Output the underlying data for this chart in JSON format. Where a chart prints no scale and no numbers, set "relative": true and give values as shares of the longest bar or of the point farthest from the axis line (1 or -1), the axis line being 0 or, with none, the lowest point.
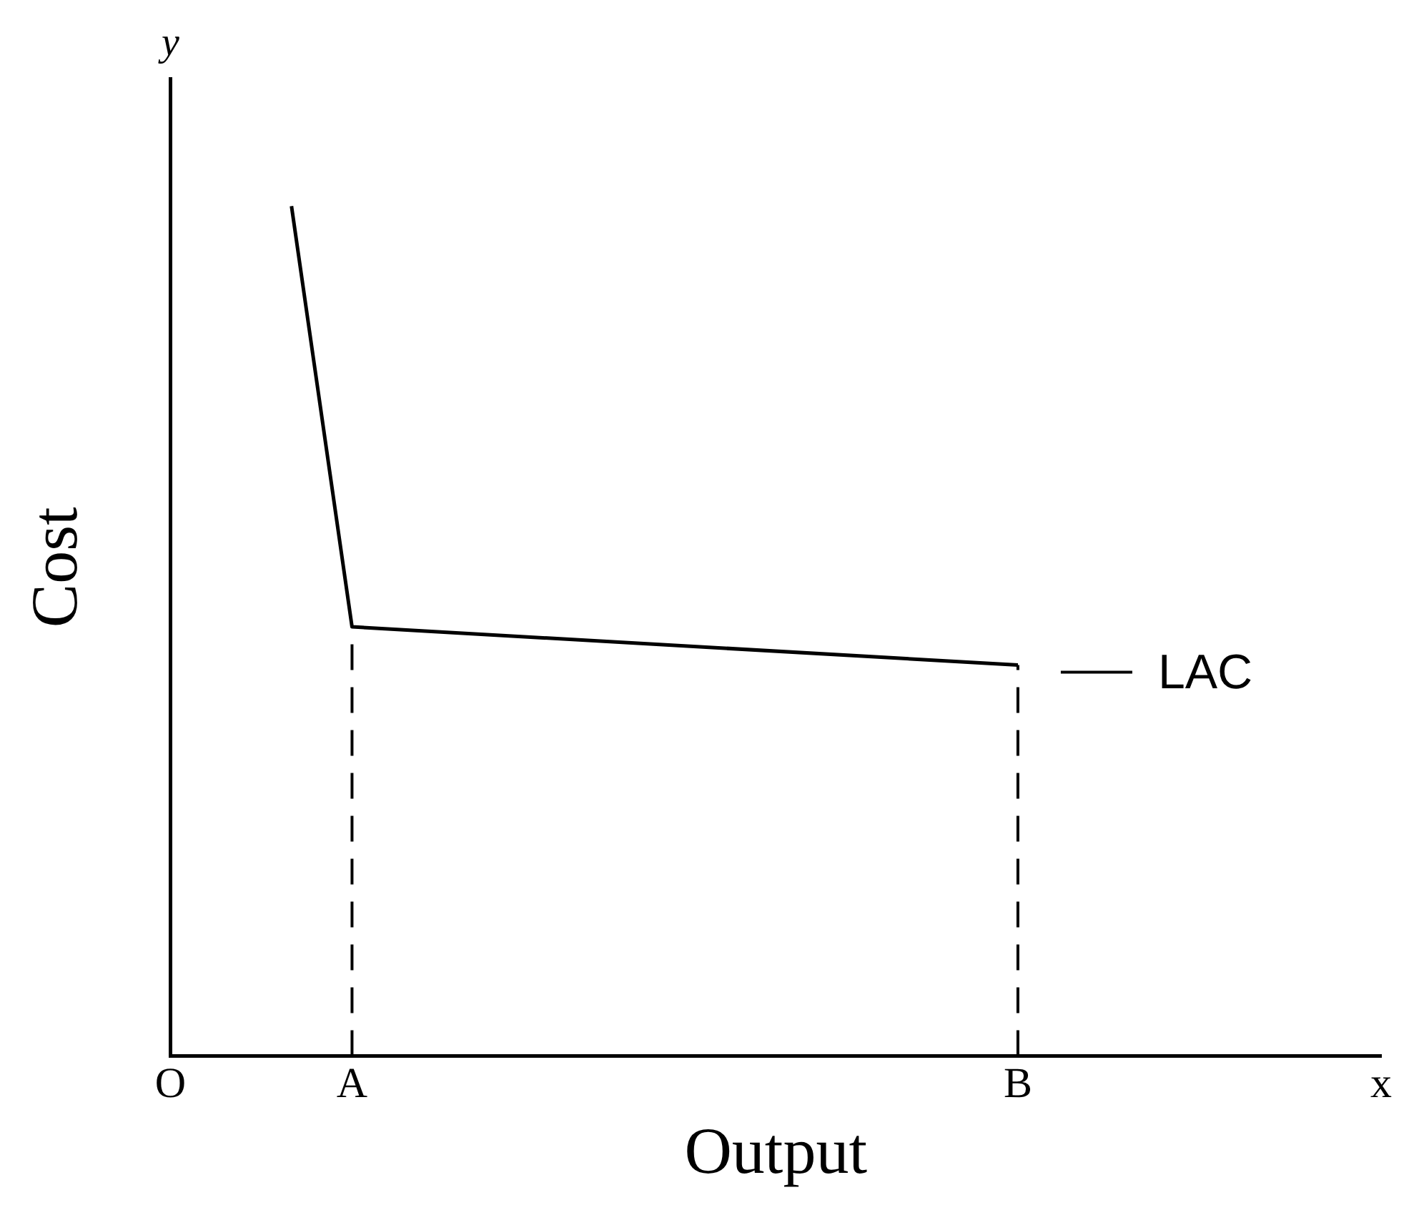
{
  "chart_data": {
    "type": "line",
    "relative": true,
    "xlabel": "Output",
    "ylabel": "Cost",
    "annotations": [
      "y"
    ],
    "categories": [
      "O",
      null,
      null,
      "A",
      null,
      null,
      null,
      null,
      null,
      null,
      null,
      null,
      null,
      null,
      "B",
      null,
      null,
      null,
      null,
      null,
      "x"
    ],
    "series": [
      {
        "name": "LAC",
        "color": "#000000",
        "values": [
          null,
          null,
          1,
          0.505,
          null,
          null,
          null,
          null,
          null,
          null,
          null,
          null,
          null,
          null,
          0.46,
          null,
          null,
          null,
          null,
          null,
          null
        ]
      }
    ],
    "ref_lines": [
      {
        "axis": "x",
        "value": "A",
        "line_style": "dashed",
        "color": "#000000"
      },
      {
        "axis": "x",
        "value": "B",
        "line_style": "dashed",
        "color": "#000000"
      }
    ],
    "tick_labels": "x",
    "grid": false,
    "legend": "right",
    "marker": "none",
    "line_style": "solid"
  }
}
